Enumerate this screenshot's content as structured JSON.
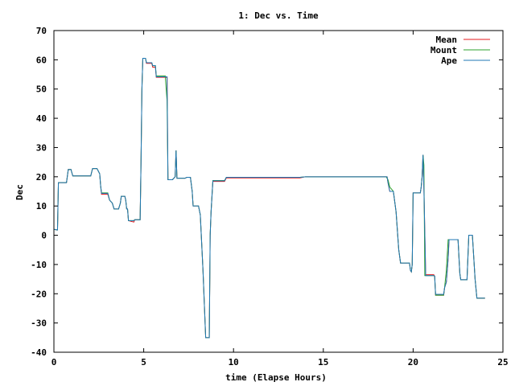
{
  "chart_data": {
    "type": "line",
    "title": "1: Dec vs. Time",
    "xlabel": "time (Elapse Hours)",
    "ylabel": "Dec",
    "xlim": [
      0,
      25
    ],
    "ylim": [
      -40,
      70
    ],
    "xticks": [
      0,
      5,
      10,
      15,
      20,
      25
    ],
    "yticks": [
      -40,
      -30,
      -20,
      -10,
      0,
      10,
      20,
      30,
      40,
      50,
      60,
      70
    ],
    "grid": false,
    "legend_position": "top-right",
    "series": [
      {
        "name": "Mean",
        "color": "#e41a1c",
        "points": [
          [
            0,
            2
          ],
          [
            0.2,
            1.8
          ],
          [
            0.25,
            18
          ],
          [
            0.7,
            18
          ],
          [
            0.8,
            22.5
          ],
          [
            0.95,
            22.5
          ],
          [
            1.05,
            20.3
          ],
          [
            2.05,
            20.3
          ],
          [
            2.15,
            22.8
          ],
          [
            2.4,
            22.8
          ],
          [
            2.55,
            21
          ],
          [
            2.6,
            17
          ],
          [
            2.65,
            14
          ],
          [
            3.0,
            14
          ],
          [
            3.1,
            12
          ],
          [
            3.25,
            11
          ],
          [
            3.35,
            9
          ],
          [
            3.6,
            9
          ],
          [
            3.7,
            11
          ],
          [
            3.75,
            13.3
          ],
          [
            3.95,
            13.3
          ],
          [
            4.0,
            12
          ],
          [
            4.05,
            9
          ],
          [
            4.1,
            9
          ],
          [
            4.15,
            5
          ],
          [
            4.45,
            4.5
          ],
          [
            4.5,
            5.3
          ],
          [
            4.8,
            5.3
          ],
          [
            4.85,
            25
          ],
          [
            4.9,
            50
          ],
          [
            4.95,
            60.5
          ],
          [
            5.1,
            60.5
          ],
          [
            5.15,
            58.8
          ],
          [
            5.45,
            58.8
          ],
          [
            5.5,
            57.5
          ],
          [
            5.65,
            57.5
          ],
          [
            5.7,
            54
          ],
          [
            6.3,
            54
          ],
          [
            6.35,
            19
          ],
          [
            6.6,
            19
          ],
          [
            6.75,
            20
          ],
          [
            6.8,
            29
          ],
          [
            6.85,
            19.5
          ],
          [
            7.3,
            19.5
          ],
          [
            7.4,
            19.8
          ],
          [
            7.6,
            19.8
          ],
          [
            7.7,
            15
          ],
          [
            7.75,
            10
          ],
          [
            8.05,
            10
          ],
          [
            8.15,
            7
          ],
          [
            8.3,
            -12
          ],
          [
            8.45,
            -35
          ],
          [
            8.65,
            -35
          ],
          [
            8.7,
            0
          ],
          [
            8.75,
            8
          ],
          [
            8.85,
            18.4
          ],
          [
            9.5,
            18.4
          ],
          [
            9.6,
            19.6
          ],
          [
            13.7,
            19.6
          ],
          [
            14,
            20
          ],
          [
            18.55,
            20
          ],
          [
            18.6,
            18
          ],
          [
            18.7,
            15
          ],
          [
            18.9,
            15
          ],
          [
            19.05,
            8
          ],
          [
            19.2,
            -5
          ],
          [
            19.3,
            -9.5
          ],
          [
            19.8,
            -9.5
          ],
          [
            19.85,
            -12
          ],
          [
            19.9,
            -12.5
          ],
          [
            19.95,
            -10
          ],
          [
            20.0,
            14.5
          ],
          [
            20.4,
            14.5
          ],
          [
            20.45,
            16.5
          ],
          [
            20.5,
            20
          ],
          [
            20.55,
            27.5
          ],
          [
            20.6,
            16
          ],
          [
            20.7,
            -13.5
          ],
          [
            21.15,
            -13.5
          ],
          [
            21.2,
            -14
          ],
          [
            21.25,
            -20.5
          ],
          [
            21.7,
            -20.5
          ],
          [
            21.75,
            -18
          ],
          [
            21.85,
            -16
          ],
          [
            21.95,
            -8
          ],
          [
            22.0,
            -1.5
          ],
          [
            22.5,
            -1.5
          ],
          [
            22.6,
            -13
          ],
          [
            22.65,
            -15.2
          ],
          [
            23.0,
            -15.2
          ],
          [
            23.1,
            0
          ],
          [
            23.3,
            0
          ],
          [
            23.35,
            -5
          ],
          [
            23.45,
            -15
          ],
          [
            23.55,
            -21.5
          ],
          [
            24.0,
            -21.5
          ]
        ]
      },
      {
        "name": "Mount",
        "color": "#2ca02c",
        "points": [
          [
            0,
            2
          ],
          [
            0.2,
            1.8
          ],
          [
            0.25,
            18
          ],
          [
            0.7,
            18
          ],
          [
            0.8,
            22.5
          ],
          [
            0.95,
            22.5
          ],
          [
            1.05,
            20.3
          ],
          [
            2.05,
            20.3
          ],
          [
            2.15,
            22.8
          ],
          [
            2.4,
            22.8
          ],
          [
            2.55,
            21
          ],
          [
            2.6,
            17
          ],
          [
            2.65,
            14.5
          ],
          [
            3.0,
            14.5
          ],
          [
            3.1,
            12
          ],
          [
            3.25,
            11
          ],
          [
            3.35,
            9
          ],
          [
            3.6,
            9
          ],
          [
            3.7,
            11
          ],
          [
            3.75,
            13.3
          ],
          [
            3.95,
            13.3
          ],
          [
            4.0,
            12
          ],
          [
            4.05,
            9
          ],
          [
            4.1,
            9
          ],
          [
            4.15,
            5
          ],
          [
            4.45,
            5
          ],
          [
            4.5,
            5.3
          ],
          [
            4.8,
            5.3
          ],
          [
            4.85,
            25
          ],
          [
            4.9,
            50
          ],
          [
            4.95,
            60.5
          ],
          [
            5.1,
            60.5
          ],
          [
            5.15,
            59
          ],
          [
            5.45,
            59
          ],
          [
            5.5,
            58
          ],
          [
            5.65,
            58
          ],
          [
            5.7,
            54.5
          ],
          [
            6.2,
            54.5
          ],
          [
            6.25,
            50
          ],
          [
            6.3,
            46
          ],
          [
            6.35,
            19
          ],
          [
            6.6,
            19
          ],
          [
            6.75,
            20
          ],
          [
            6.8,
            29
          ],
          [
            6.85,
            19.5
          ],
          [
            7.3,
            19.5
          ],
          [
            7.4,
            19.8
          ],
          [
            7.6,
            19.8
          ],
          [
            7.7,
            15
          ],
          [
            7.75,
            10
          ],
          [
            8.05,
            10
          ],
          [
            8.15,
            7
          ],
          [
            8.3,
            -12
          ],
          [
            8.45,
            -35
          ],
          [
            8.65,
            -35
          ],
          [
            8.7,
            0
          ],
          [
            8.75,
            8
          ],
          [
            8.85,
            18.7
          ],
          [
            9.5,
            18.7
          ],
          [
            9.6,
            19.8
          ],
          [
            13.7,
            19.8
          ],
          [
            14,
            20
          ],
          [
            18.5,
            20
          ],
          [
            18.6,
            19
          ],
          [
            18.7,
            16.5
          ],
          [
            18.9,
            15
          ],
          [
            19.05,
            8
          ],
          [
            19.2,
            -5
          ],
          [
            19.3,
            -9.5
          ],
          [
            19.8,
            -9.5
          ],
          [
            19.85,
            -12
          ],
          [
            19.9,
            -12.5
          ],
          [
            19.95,
            -10
          ],
          [
            20.0,
            14.5
          ],
          [
            20.4,
            14.5
          ],
          [
            20.45,
            16.5
          ],
          [
            20.5,
            20
          ],
          [
            20.55,
            27.5
          ],
          [
            20.6,
            24
          ],
          [
            20.65,
            -13.8
          ],
          [
            21.15,
            -13.8
          ],
          [
            21.2,
            -14
          ],
          [
            21.25,
            -20.5
          ],
          [
            21.7,
            -20.5
          ],
          [
            21.75,
            -18
          ],
          [
            21.85,
            -12
          ],
          [
            21.95,
            -1.5
          ],
          [
            22.5,
            -1.5
          ],
          [
            22.6,
            -13
          ],
          [
            22.65,
            -15.2
          ],
          [
            23.0,
            -15.2
          ],
          [
            23.1,
            0
          ],
          [
            23.3,
            0
          ],
          [
            23.35,
            -5
          ],
          [
            23.45,
            -15
          ],
          [
            23.55,
            -21.5
          ],
          [
            24.0,
            -21.5
          ]
        ]
      },
      {
        "name": "Ape",
        "color": "#1f77b4",
        "points": [
          [
            0,
            2
          ],
          [
            0.2,
            1.8
          ],
          [
            0.25,
            18
          ],
          [
            0.7,
            18
          ],
          [
            0.8,
            22.5
          ],
          [
            0.95,
            22.5
          ],
          [
            1.05,
            20.3
          ],
          [
            2.05,
            20.3
          ],
          [
            2.15,
            22.8
          ],
          [
            2.4,
            22.8
          ],
          [
            2.55,
            21
          ],
          [
            2.6,
            17
          ],
          [
            2.65,
            14.3
          ],
          [
            3.0,
            14.3
          ],
          [
            3.1,
            12
          ],
          [
            3.25,
            11
          ],
          [
            3.35,
            9
          ],
          [
            3.6,
            9
          ],
          [
            3.7,
            11
          ],
          [
            3.75,
            13.3
          ],
          [
            3.95,
            13.3
          ],
          [
            4.0,
            12
          ],
          [
            4.05,
            9
          ],
          [
            4.1,
            9
          ],
          [
            4.15,
            5
          ],
          [
            4.45,
            5
          ],
          [
            4.5,
            5.3
          ],
          [
            4.8,
            5.3
          ],
          [
            4.85,
            25
          ],
          [
            4.9,
            50
          ],
          [
            4.95,
            60.5
          ],
          [
            5.1,
            60.5
          ],
          [
            5.15,
            59
          ],
          [
            5.45,
            59
          ],
          [
            5.5,
            58
          ],
          [
            5.65,
            58
          ],
          [
            5.7,
            54.2
          ],
          [
            6.3,
            54.2
          ],
          [
            6.35,
            19
          ],
          [
            6.6,
            19
          ],
          [
            6.75,
            20
          ],
          [
            6.8,
            29
          ],
          [
            6.85,
            19.5
          ],
          [
            7.3,
            19.5
          ],
          [
            7.4,
            19.8
          ],
          [
            7.6,
            19.8
          ],
          [
            7.7,
            15
          ],
          [
            7.75,
            10
          ],
          [
            8.05,
            10
          ],
          [
            8.15,
            7
          ],
          [
            8.3,
            -12
          ],
          [
            8.45,
            -35
          ],
          [
            8.65,
            -35
          ],
          [
            8.7,
            0
          ],
          [
            8.75,
            8
          ],
          [
            8.85,
            18.6
          ],
          [
            9.5,
            18.6
          ],
          [
            9.6,
            19.8
          ],
          [
            13.7,
            19.8
          ],
          [
            14,
            20
          ],
          [
            18.55,
            20
          ],
          [
            18.6,
            18
          ],
          [
            18.7,
            15
          ],
          [
            18.9,
            15
          ],
          [
            19.05,
            8
          ],
          [
            19.2,
            -5
          ],
          [
            19.3,
            -9.5
          ],
          [
            19.8,
            -9.5
          ],
          [
            19.85,
            -12
          ],
          [
            19.9,
            -12.5
          ],
          [
            19.95,
            -10
          ],
          [
            20.0,
            14.5
          ],
          [
            20.4,
            14.5
          ],
          [
            20.45,
            16.5
          ],
          [
            20.5,
            20
          ],
          [
            20.55,
            27.5
          ],
          [
            20.6,
            16
          ],
          [
            20.7,
            -13.8
          ],
          [
            21.15,
            -13.8
          ],
          [
            21.2,
            -14
          ],
          [
            21.25,
            -20.2
          ],
          [
            21.7,
            -20.2
          ],
          [
            21.75,
            -18
          ],
          [
            21.85,
            -16
          ],
          [
            21.95,
            -8
          ],
          [
            22.0,
            -1.5
          ],
          [
            22.5,
            -1.5
          ],
          [
            22.6,
            -13
          ],
          [
            22.65,
            -15.2
          ],
          [
            23.0,
            -15.2
          ],
          [
            23.1,
            0
          ],
          [
            23.3,
            0
          ],
          [
            23.35,
            -5
          ],
          [
            23.45,
            -15
          ],
          [
            23.55,
            -21.5
          ],
          [
            24.0,
            -21.5
          ]
        ]
      }
    ]
  }
}
